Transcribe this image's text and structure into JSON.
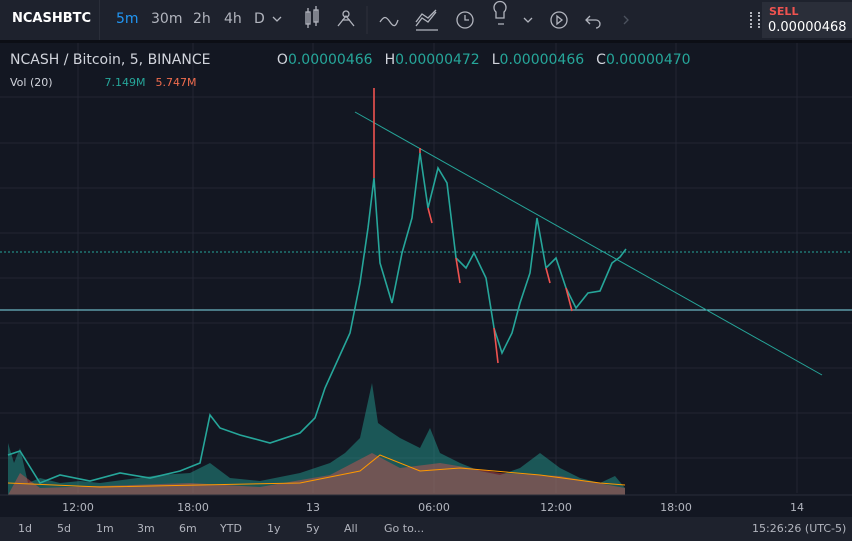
{
  "toolbar": {
    "symbol": "NCASHBTC",
    "intervals": [
      "5m",
      "30m",
      "2h",
      "4h",
      "D"
    ],
    "sell": {
      "label": "SELL",
      "price": "0.00000468"
    }
  },
  "legend": {
    "title": "NCASH / Bitcoin, 5, BINANCE",
    "ohlc": [
      {
        "key": "O",
        "value": "0.00000466"
      },
      {
        "key": "H",
        "value": "0.00000472"
      },
      {
        "key": "L",
        "value": "0.00000466"
      },
      {
        "key": "C",
        "value": "0.00000470"
      }
    ],
    "volume": {
      "label": "Vol (20)",
      "values": [
        "7.149M",
        "5.747M"
      ]
    }
  },
  "x_axis": [
    "12:00",
    "18:00",
    "13",
    "06:00",
    "12:00",
    "18:00",
    "14"
  ],
  "bottom": {
    "ranges": [
      "1d",
      "5d",
      "1m",
      "3m",
      "6m",
      "YTD",
      "1y",
      "5y",
      "All"
    ],
    "goto": "Go to...",
    "clock": "15:26:26 (UTC-5)"
  }
}
